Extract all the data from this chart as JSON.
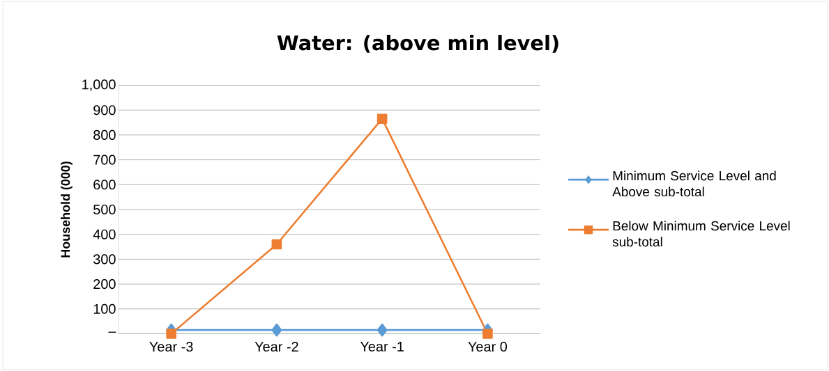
{
  "chart_data": {
    "type": "line",
    "title": "Water: (above min level)",
    "ylabel": "Household (000)",
    "categories": [
      "Year -3",
      "Year -2",
      "Year -1",
      "Year 0"
    ],
    "series": [
      {
        "name": "Minimum Service Level and Above sub-total",
        "color": "#5b9bd5",
        "marker": "diamond",
        "values": [
          15,
          15,
          15,
          15
        ]
      },
      {
        "name": "Below Minimum Service Level sub-total",
        "color": "#ed7d31",
        "marker": "square",
        "values": [
          0,
          360,
          865,
          0
        ]
      }
    ],
    "ylim": [
      0,
      1000
    ],
    "yticks": [
      {
        "value": 0,
        "label": "–"
      },
      100,
      200,
      300,
      400,
      500,
      600,
      700,
      800,
      900,
      {
        "value": 1000,
        "label": "1,000"
      }
    ],
    "grid": "y",
    "legend": "right"
  }
}
